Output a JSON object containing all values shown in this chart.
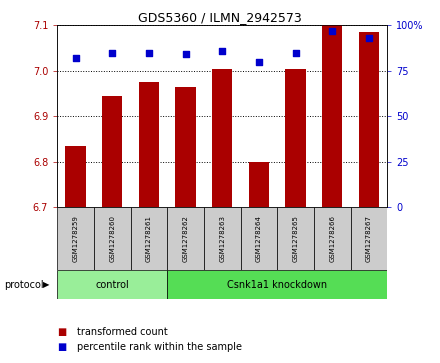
{
  "title": "GDS5360 / ILMN_2942573",
  "samples": [
    "GSM1278259",
    "GSM1278260",
    "GSM1278261",
    "GSM1278262",
    "GSM1278263",
    "GSM1278264",
    "GSM1278265",
    "GSM1278266",
    "GSM1278267"
  ],
  "bar_values": [
    6.835,
    6.945,
    6.975,
    6.965,
    7.005,
    6.8,
    7.005,
    7.1,
    7.085
  ],
  "percentile_values": [
    82,
    85,
    85,
    84,
    86,
    80,
    85,
    97,
    93
  ],
  "ylim_left": [
    6.7,
    7.1
  ],
  "ylim_right": [
    0,
    100
  ],
  "yticks_left": [
    6.7,
    6.8,
    6.9,
    7.0,
    7.1
  ],
  "yticks_right": [
    0,
    25,
    50,
    75,
    100
  ],
  "bar_color": "#AA0000",
  "scatter_color": "#0000CC",
  "bar_width": 0.55,
  "ctrl_color": "#99EE99",
  "kd_color": "#55DD55",
  "sample_box_color": "#CCCCCC",
  "grid_color": "#000000",
  "plot_bg_color": "#FFFFFF",
  "tick_label_color_left": "#AA0000",
  "tick_label_color_right": "#0000CC",
  "scatter_size": 18,
  "title_fontsize": 9,
  "tick_fontsize": 7,
  "sample_fontsize": 5,
  "legend_fontsize": 7,
  "protocol_fontsize": 7
}
